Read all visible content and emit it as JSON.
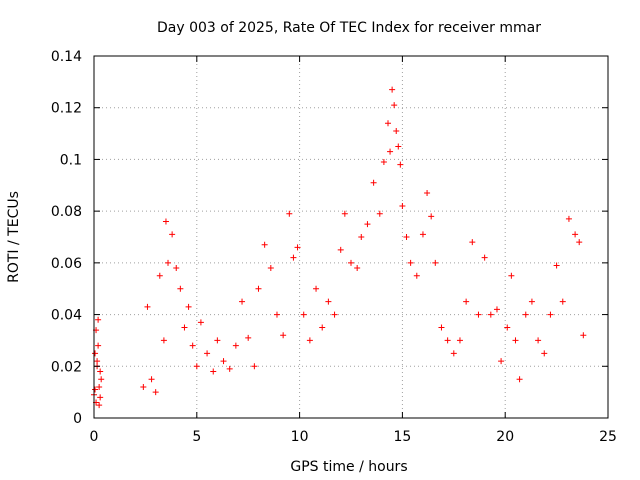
{
  "chart_data": {
    "type": "scatter",
    "title": "Day 003 of 2025, Rate Of TEC Index for receiver mmar",
    "xlabel": "GPS time / hours",
    "ylabel": "ROTI / TECUs",
    "xlim": [
      0,
      25
    ],
    "ylim": [
      0,
      0.14
    ],
    "xticks": [
      0,
      5,
      10,
      15,
      20,
      25
    ],
    "xtick_labels": [
      "0",
      "5",
      "10",
      "15",
      "20",
      "25"
    ],
    "yticks": [
      0,
      0.02,
      0.04,
      0.06,
      0.08,
      0.1,
      0.12,
      0.14
    ],
    "ytick_labels": [
      "0",
      "0.02",
      "0.04",
      "0.06",
      "0.08",
      "0.1",
      "0.12",
      "0.14"
    ],
    "grid": true,
    "legend": "none",
    "marker": "+",
    "color": "#ff0000",
    "series": [
      {
        "x": [
          0.0,
          0.05,
          0.1,
          0.15,
          0.2,
          0.25,
          0.3,
          0.35,
          0.1,
          0.2,
          0.3,
          0.05,
          0.25,
          0.15,
          2.4,
          2.6,
          2.8,
          3.0,
          3.2,
          3.4,
          3.5,
          3.6,
          3.8,
          4.0,
          4.2,
          4.4,
          4.6,
          4.8,
          5.0,
          5.2,
          5.5,
          5.8,
          6.0,
          6.3,
          6.6,
          6.9,
          7.2,
          7.5,
          7.8,
          8.0,
          8.3,
          8.6,
          8.9,
          9.2,
          9.5,
          9.7,
          9.9,
          10.2,
          10.5,
          10.8,
          11.1,
          11.4,
          11.7,
          12.0,
          12.2,
          12.5,
          12.8,
          13.0,
          13.3,
          13.6,
          13.9,
          14.1,
          14.3,
          14.4,
          14.5,
          14.6,
          14.7,
          14.8,
          14.9,
          15.0,
          15.2,
          15.4,
          15.7,
          16.0,
          16.2,
          16.4,
          16.6,
          16.9,
          17.2,
          17.5,
          17.8,
          18.1,
          18.4,
          18.7,
          19.0,
          19.3,
          19.6,
          19.8,
          20.1,
          20.3,
          20.5,
          20.7,
          21.0,
          21.3,
          21.6,
          21.9,
          22.2,
          22.5,
          22.8,
          23.1,
          23.4,
          23.6,
          23.8
        ],
        "y": [
          0.009,
          0.025,
          0.034,
          0.02,
          0.038,
          0.012,
          0.008,
          0.015,
          0.006,
          0.028,
          0.018,
          0.011,
          0.005,
          0.022,
          0.012,
          0.043,
          0.015,
          0.01,
          0.055,
          0.03,
          0.076,
          0.06,
          0.071,
          0.058,
          0.05,
          0.035,
          0.043,
          0.028,
          0.02,
          0.037,
          0.025,
          0.018,
          0.03,
          0.022,
          0.019,
          0.028,
          0.045,
          0.031,
          0.02,
          0.05,
          0.067,
          0.058,
          0.04,
          0.032,
          0.079,
          0.062,
          0.066,
          0.04,
          0.03,
          0.05,
          0.035,
          0.045,
          0.04,
          0.065,
          0.079,
          0.06,
          0.058,
          0.07,
          0.075,
          0.091,
          0.079,
          0.099,
          0.114,
          0.103,
          0.127,
          0.121,
          0.111,
          0.105,
          0.098,
          0.082,
          0.07,
          0.06,
          0.055,
          0.071,
          0.087,
          0.078,
          0.06,
          0.035,
          0.03,
          0.025,
          0.03,
          0.045,
          0.068,
          0.04,
          0.062,
          0.04,
          0.042,
          0.022,
          0.035,
          0.055,
          0.03,
          0.015,
          0.04,
          0.045,
          0.03,
          0.025,
          0.04,
          0.059,
          0.045,
          0.077,
          0.071,
          0.068,
          0.032
        ]
      }
    ]
  }
}
